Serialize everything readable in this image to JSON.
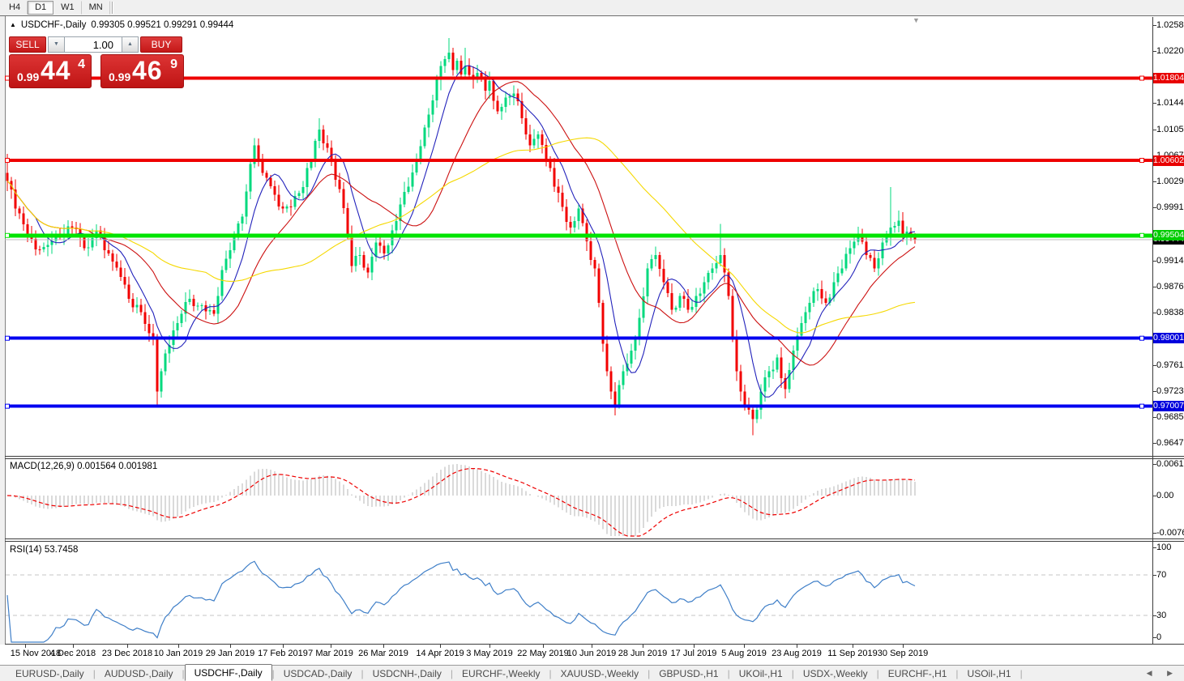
{
  "toolbar": {
    "timeframes": [
      {
        "label": "H4",
        "active": false
      },
      {
        "label": "D1",
        "active": true
      },
      {
        "label": "W1",
        "active": false
      },
      {
        "label": "MN",
        "active": false
      }
    ]
  },
  "chart": {
    "collapse_arrow": "▲",
    "symbol": "USDCHF-,Daily",
    "ohlc_text": "0.99305 0.99521 0.99291 0.99444",
    "shift_marker": "▼"
  },
  "trade_panel": {
    "sell_label": "SELL",
    "buy_label": "BUY",
    "volume": "1.00",
    "spinner_down": "▼",
    "spinner_up": "▲",
    "sell_price": {
      "prefix": "0.99",
      "big": "44",
      "sup": "4"
    },
    "buy_price": {
      "prefix": "0.99",
      "big": "46",
      "sup": "9"
    }
  },
  "price_axis": {
    "ticks": [
      "1.02580",
      "1.02200",
      "1.01440",
      "1.01050",
      "1.00670",
      "1.00290",
      "0.99910",
      "0.99140",
      "0.98760",
      "0.98380",
      "0.97610",
      "0.97230",
      "0.96850",
      "0.96470"
    ],
    "badges": [
      {
        "label": "1.01804",
        "value": 1.01804,
        "bg": "#e80000"
      },
      {
        "label": "1.00602",
        "value": 1.00602,
        "bg": "#e80000"
      },
      {
        "label": "0.99444",
        "value": 0.99444,
        "bg": "#000000"
      },
      {
        "label": "0.99504",
        "value": 0.99504,
        "bg": "#00cc00"
      },
      {
        "label": "0.98001",
        "value": 0.98001,
        "bg": "#0000dd"
      },
      {
        "label": "0.97007",
        "value": 0.97007,
        "bg": "#0000dd"
      }
    ]
  },
  "macd_panel": {
    "label": "MACD(12,26,9) 0.001564 0.001981",
    "axis_labels": [
      "0.00613",
      "0.00",
      "-0.00761"
    ]
  },
  "rsi_panel": {
    "label": "RSI(14) 53.7458",
    "axis_labels": [
      "100",
      "70",
      "30",
      "0"
    ]
  },
  "time_axis": {
    "labels": [
      "15 Nov 2018",
      "4 Dec 2018",
      "23 Dec 2018",
      "10 Jan 2019",
      "29 Jan 2019",
      "17 Feb 2019",
      "7 Mar 2019",
      "26 Mar 2019",
      "14 Apr 2019",
      "3 May 2019",
      "22 May 2019",
      "10 Jun 2019",
      "28 Jun 2019",
      "17 Jul 2019",
      "5 Aug 2019",
      "23 Aug 2019",
      "11 Sep 2019",
      "30 Sep 2019"
    ]
  },
  "tab_bar": {
    "tabs": [
      {
        "label": "EURUSD-,Daily",
        "active": false
      },
      {
        "label": "AUDUSD-,Daily",
        "active": false
      },
      {
        "label": "USDCHF-,Daily",
        "active": true
      },
      {
        "label": "USDCAD-,Daily",
        "active": false
      },
      {
        "label": "USDCNH-,Daily",
        "active": false
      },
      {
        "label": "EURCHF-,Weekly",
        "active": false
      },
      {
        "label": "XAUUSD-,Weekly",
        "active": false
      },
      {
        "label": "GBPUSD-,H1",
        "active": false
      },
      {
        "label": "UKOil-,H1",
        "active": false
      },
      {
        "label": "USDX-,Weekly",
        "active": false
      },
      {
        "label": "EURCHF-,H1",
        "active": false
      },
      {
        "label": "USOil-,H1",
        "active": false
      }
    ],
    "scroll_left": "◀",
    "scroll_right": "▶"
  },
  "chart_data": {
    "type": "candlestick",
    "symbol": "USDCHF",
    "timeframe": "Daily",
    "current_ohlc": {
      "open": 0.99305,
      "high": 0.99521,
      "low": 0.99291,
      "close": 0.99444
    },
    "sell_price": 0.99444,
    "buy_price": 0.99469,
    "date_start": "15 Nov 2018",
    "date_end_visible": "30 Sep 2019",
    "y_axis": {
      "min": 0.9647,
      "max": 1.0258,
      "tick_step": 0.0038
    },
    "candle_count": 225,
    "candle_up_color": "#00d97e",
    "candle_down_color": "#f20000",
    "close_anchors": [
      [
        0,
        1.003
      ],
      [
        2,
        0.999
      ],
      [
        5,
        0.995
      ],
      [
        8,
        0.993
      ],
      [
        12,
        0.9952
      ],
      [
        16,
        0.9962
      ],
      [
        19,
        0.9932
      ],
      [
        22,
        0.9958
      ],
      [
        26,
        0.9912
      ],
      [
        30,
        0.9858
      ],
      [
        33,
        0.9838
      ],
      [
        36,
        0.98
      ],
      [
        37,
        0.9722
      ],
      [
        38,
        0.9752
      ],
      [
        40,
        0.979
      ],
      [
        42,
        0.9822
      ],
      [
        45,
        0.9858
      ],
      [
        48,
        0.9848
      ],
      [
        51,
        0.9836
      ],
      [
        53,
        0.99
      ],
      [
        56,
        0.9948
      ],
      [
        58,
        0.9978
      ],
      [
        60,
        1.0055
      ],
      [
        61,
        1.0082
      ],
      [
        62,
        1.006
      ],
      [
        64,
        1.0035
      ],
      [
        66,
        1.001
      ],
      [
        68,
        0.999
      ],
      [
        70,
        0.9992
      ],
      [
        72,
        1.0012
      ],
      [
        75,
        1.0058
      ],
      [
        77,
        1.0105
      ],
      [
        78,
        1.0085
      ],
      [
        80,
        1.006
      ],
      [
        82,
        1.0018
      ],
      [
        84,
        0.9952
      ],
      [
        85,
        0.9906
      ],
      [
        87,
        0.9922
      ],
      [
        89,
        0.9896
      ],
      [
        91,
        0.994
      ],
      [
        93,
        0.9924
      ],
      [
        95,
        0.9958
      ],
      [
        97,
        0.9996
      ],
      [
        99,
        1.0022
      ],
      [
        101,
        1.0058
      ],
      [
        103,
        1.0108
      ],
      [
        105,
        1.0148
      ],
      [
        107,
        1.0198
      ],
      [
        109,
        1.0218
      ],
      [
        110,
        1.0192
      ],
      [
        111,
        1.0206
      ],
      [
        112,
        1.0186
      ],
      [
        113,
        1.0198
      ],
      [
        115,
        1.0178
      ],
      [
        116,
        1.0188
      ],
      [
        118,
        1.0162
      ],
      [
        119,
        1.0176
      ],
      [
        121,
        1.0132
      ],
      [
        123,
        1.0152
      ],
      [
        125,
        1.0158
      ],
      [
        127,
        1.0122
      ],
      [
        129,
        1.0082
      ],
      [
        131,
        1.0098
      ],
      [
        133,
        1.0062
      ],
      [
        135,
        1.0022
      ],
      [
        137,
        0.9992
      ],
      [
        139,
        0.9962
      ],
      [
        141,
        0.999
      ],
      [
        143,
        0.9942
      ],
      [
        145,
        0.9902
      ],
      [
        146,
        0.9852
      ],
      [
        147,
        0.9792
      ],
      [
        148,
        0.9752
      ],
      [
        149,
        0.9722
      ],
      [
        150,
        0.9702
      ],
      [
        152,
        0.9752
      ],
      [
        154,
        0.9782
      ],
      [
        156,
        0.983
      ],
      [
        158,
        0.9902
      ],
      [
        160,
        0.9922
      ],
      [
        162,
        0.9882
      ],
      [
        164,
        0.9842
      ],
      [
        166,
        0.9862
      ],
      [
        168,
        0.9842
      ],
      [
        170,
        0.9862
      ],
      [
        172,
        0.9882
      ],
      [
        174,
        0.9902
      ],
      [
        176,
        0.9922
      ],
      [
        178,
        0.9862
      ],
      [
        179,
        0.9802
      ],
      [
        180,
        0.9752
      ],
      [
        181,
        0.9722
      ],
      [
        182,
        0.9702
      ],
      [
        184,
        0.9682
      ],
      [
        186,
        0.9722
      ],
      [
        188,
        0.9752
      ],
      [
        190,
        0.9772
      ],
      [
        191,
        0.9742
      ],
      [
        192,
        0.9726
      ],
      [
        194,
        0.9782
      ],
      [
        196,
        0.9822
      ],
      [
        198,
        0.9852
      ],
      [
        200,
        0.9872
      ],
      [
        202,
        0.9852
      ],
      [
        204,
        0.9882
      ],
      [
        206,
        0.9902
      ],
      [
        208,
        0.9932
      ],
      [
        210,
        0.9952
      ],
      [
        212,
        0.9922
      ],
      [
        214,
        0.9902
      ],
      [
        216,
        0.994
      ],
      [
        218,
        0.9962
      ],
      [
        220,
        0.9972
      ],
      [
        221,
        0.995
      ],
      [
        222,
        0.9956
      ],
      [
        224,
        0.9944
      ]
    ],
    "wick_events": [
      [
        0,
        "h",
        1.007
      ],
      [
        37,
        "l",
        0.97
      ],
      [
        61,
        "h",
        1.0093
      ],
      [
        77,
        "h",
        1.0122
      ],
      [
        109,
        "h",
        1.0239
      ],
      [
        113,
        "h",
        1.0225
      ],
      [
        150,
        "l",
        0.9691
      ],
      [
        176,
        "h",
        0.9967
      ],
      [
        184,
        "l",
        0.9658
      ],
      [
        192,
        "l",
        0.9712
      ],
      [
        218,
        "h",
        1.0021
      ]
    ],
    "horizontal_lines": [
      {
        "price": 1.01804,
        "color": "#ee0000",
        "width": 4
      },
      {
        "price": 1.00602,
        "color": "#ee0000",
        "width": 4
      },
      {
        "price": 0.99504,
        "color": "#00e400",
        "width": 5
      },
      {
        "price": 0.99444,
        "color": "#bdbdbd",
        "width": 1
      },
      {
        "price": 0.98001,
        "color": "#0000f0",
        "width": 4
      },
      {
        "price": 0.97007,
        "color": "#0000f0",
        "width": 4
      }
    ],
    "moving_averages": [
      {
        "period": 8,
        "color": "#2222bb"
      },
      {
        "period": 21,
        "color": "#cc1111"
      },
      {
        "period": 50,
        "color": "#f5d800"
      }
    ],
    "indicators": {
      "macd": {
        "fast": 12,
        "slow": 26,
        "signal": 9,
        "value": 0.001564,
        "signal_value": 0.001981,
        "axis_max": 0.00613,
        "axis_min": -0.00761,
        "hist_color": "#b4b4b4",
        "signal_color": "#ee0000"
      },
      "rsi": {
        "period": 14,
        "value": 53.7458,
        "levels": [
          70,
          30
        ],
        "color": "#3f7fc8",
        "axis": [
          0,
          100
        ]
      }
    }
  }
}
